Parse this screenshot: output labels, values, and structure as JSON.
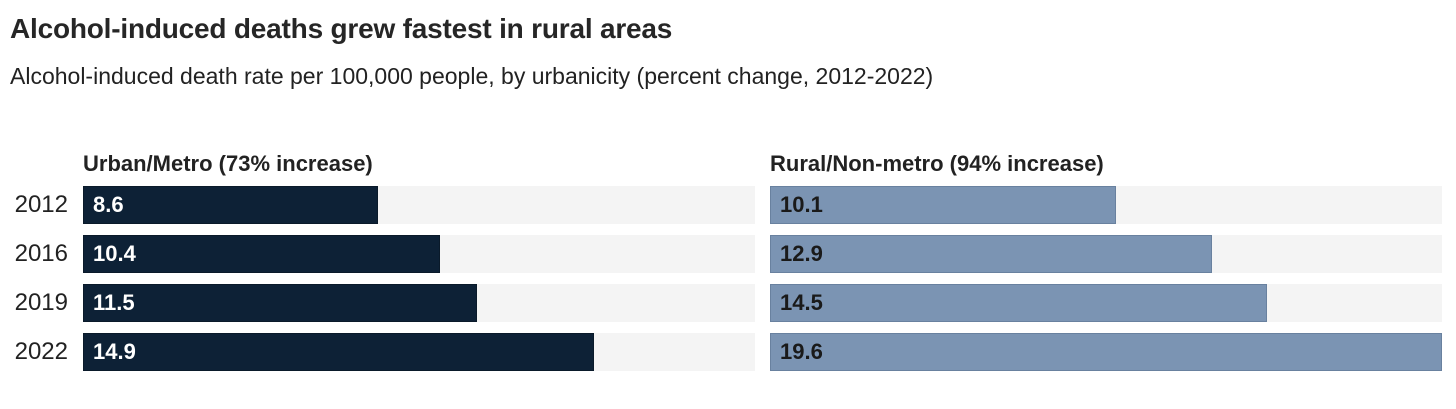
{
  "chart_data": {
    "type": "bar",
    "orientation": "horizontal",
    "title": "Alcohol-induced deaths grew fastest in rural areas",
    "subtitle": "Alcohol-induced death rate per 100,000 people, by urbanicity (percent change, 2012-2022)",
    "categories": [
      "2012",
      "2016",
      "2019",
      "2022"
    ],
    "series": [
      {
        "name": "Urban/Metro (73% increase)",
        "values": [
          8.6,
          10.4,
          11.5,
          14.9
        ],
        "bar_color": "#0d2136",
        "bar_border_color": "#0a1a2a",
        "value_label_color": "#ffffff"
      },
      {
        "name": "Rural/Non-metro (94% increase)",
        "values": [
          10.1,
          12.9,
          14.5,
          19.6
        ],
        "bar_color": "#7b94b3",
        "bar_border_color": "#69819f",
        "value_label_color": "#1a1a1a"
      }
    ],
    "xlim": [
      0,
      19.6
    ],
    "track_color": "#f4f4f4",
    "value_label_position": "inside-start",
    "grid": false,
    "legend_position": "column-headers"
  }
}
